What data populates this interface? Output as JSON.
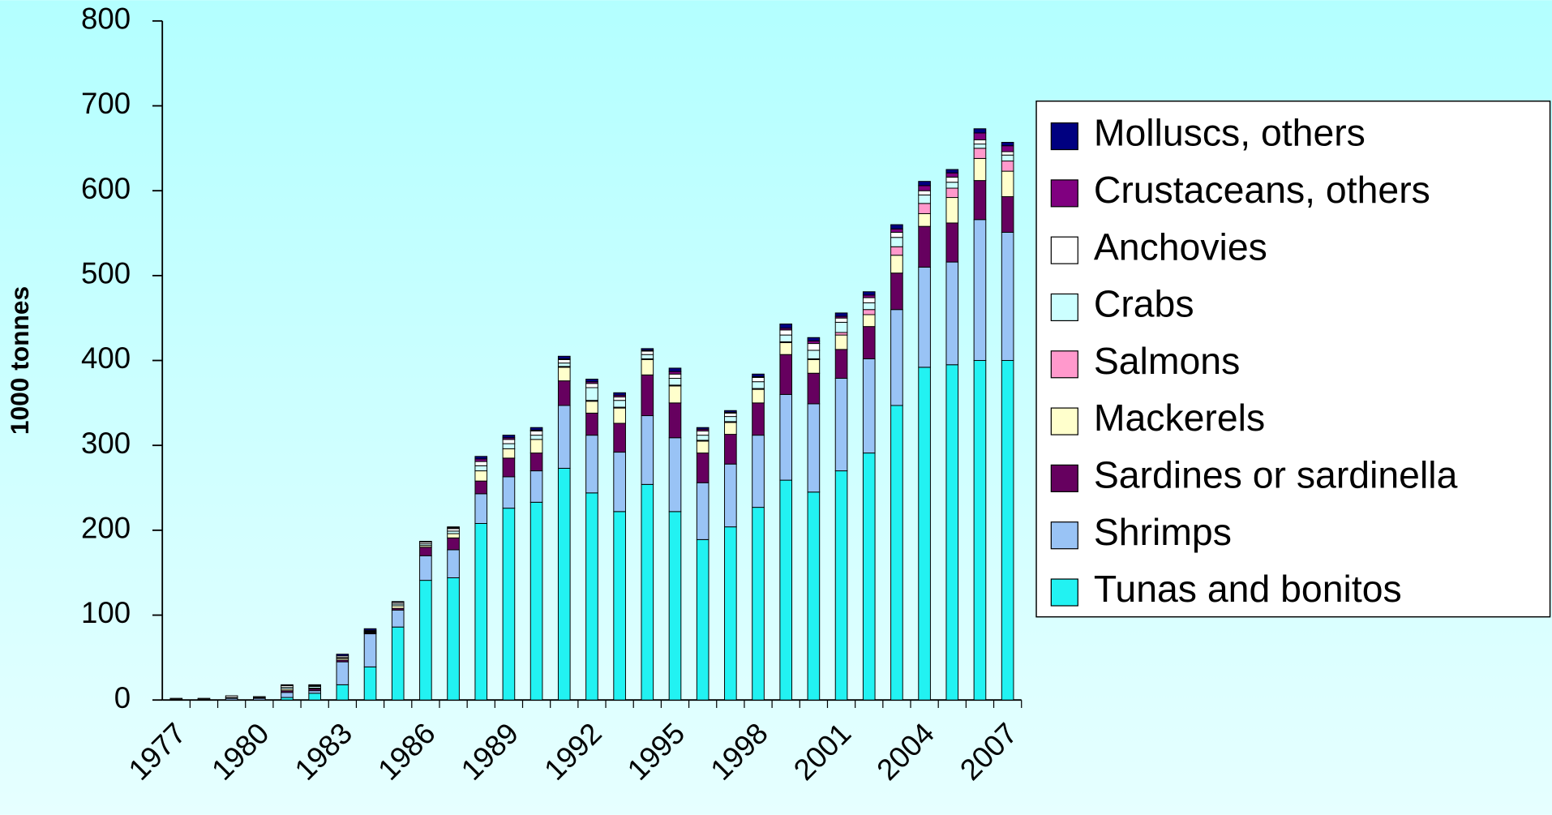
{
  "chart_data": {
    "type": "stacked-bar",
    "y_label": "1000 tonnes",
    "categories": [
      "1977",
      null,
      null,
      "1980",
      null,
      null,
      "1983",
      null,
      null,
      "1986",
      null,
      null,
      "1989",
      null,
      null,
      "1992",
      null,
      null,
      "1995",
      null,
      null,
      "1998",
      null,
      null,
      "2001",
      null,
      null,
      "2004",
      null,
      null,
      "2007"
    ],
    "ylim": [
      0,
      800
    ],
    "yticks": [
      0,
      100,
      200,
      300,
      400,
      500,
      600,
      700,
      800
    ],
    "legend": "right",
    "series": [
      {
        "name": "Tunas and bonitos",
        "color": "#22f2f2",
        "values": [
          0,
          0,
          0,
          0,
          3,
          8,
          18,
          39,
          86,
          141,
          144,
          208,
          226,
          233,
          273,
          244,
          222,
          254,
          222,
          189,
          204,
          227,
          259,
          245,
          270,
          291,
          347,
          392,
          395,
          400,
          400
        ]
      },
      {
        "name": "Shrimps",
        "color": "#99c3f5",
        "values": [
          1,
          1,
          2,
          2,
          6,
          3,
          27,
          39,
          20,
          29,
          33,
          35,
          37,
          37,
          74,
          68,
          70,
          81,
          87,
          67,
          74,
          85,
          101,
          104,
          109,
          111,
          113,
          118,
          121,
          166,
          151
        ]
      },
      {
        "name": "Sardines or sardinella",
        "color": "#66005f",
        "values": [
          0,
          0,
          0,
          1,
          2,
          2,
          2,
          1,
          2,
          10,
          14,
          15,
          22,
          21,
          29,
          26,
          34,
          48,
          41,
          35,
          35,
          38,
          47,
          36,
          34,
          38,
          43,
          48,
          46,
          46,
          42
        ]
      },
      {
        "name": "Mackerels",
        "color": "#ffffcc",
        "values": [
          0,
          0,
          0,
          0,
          2,
          1,
          2,
          1,
          3,
          2,
          5,
          12,
          11,
          16,
          16,
          14,
          18,
          18,
          20,
          14,
          14,
          16,
          14,
          16,
          17,
          14,
          21,
          15,
          30,
          26,
          30
        ]
      },
      {
        "name": "Salmons",
        "color": "#ff99cc",
        "values": [
          0,
          0,
          0,
          0,
          0,
          0,
          0,
          0,
          0,
          0,
          0,
          0,
          0,
          0,
          1,
          1,
          1,
          1,
          1,
          1,
          1,
          1,
          1,
          1,
          3,
          6,
          10,
          12,
          11,
          12,
          12
        ]
      },
      {
        "name": "Crabs",
        "color": "#ccffff",
        "values": [
          0,
          0,
          1,
          0,
          2,
          2,
          1,
          1,
          2,
          2,
          3,
          6,
          6,
          5,
          4,
          15,
          8,
          5,
          8,
          6,
          6,
          8,
          8,
          10,
          12,
          8,
          11,
          10,
          7,
          5,
          7
        ]
      },
      {
        "name": "Anchovies",
        "color": "#ffffff",
        "values": [
          1,
          1,
          2,
          1,
          2,
          1,
          2,
          1,
          2,
          2,
          3,
          5,
          5,
          5,
          4,
          5,
          4,
          4,
          5,
          5,
          4,
          5,
          6,
          8,
          5,
          6,
          6,
          5,
          6,
          5,
          4
        ]
      },
      {
        "name": "Crustaceans, others",
        "color": "#800080",
        "values": [
          0,
          0,
          0,
          0,
          0,
          0,
          0,
          0,
          0,
          0,
          1,
          3,
          2,
          1,
          1,
          2,
          2,
          1,
          3,
          2,
          1,
          1,
          2,
          3,
          2,
          3,
          4,
          6,
          5,
          8,
          7
        ]
      },
      {
        "name": "Molluscs, others",
        "color": "#000080",
        "values": [
          0,
          0,
          0,
          0,
          1,
          1,
          2,
          2,
          1,
          1,
          1,
          3,
          3,
          3,
          3,
          3,
          3,
          2,
          4,
          2,
          2,
          3,
          5,
          4,
          4,
          4,
          5,
          5,
          4,
          5,
          4
        ]
      }
    ]
  }
}
